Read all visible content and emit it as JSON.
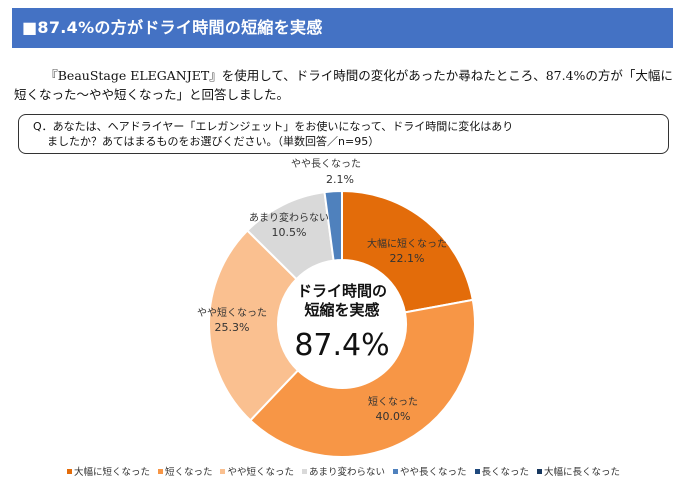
{
  "header": {
    "title": "■87.4%の方がドライ時間の短縮を実感"
  },
  "intro": {
    "text": "『BeauStage ELEGANJET』を使用して、ドライ時間の変化があったか尋ねたところ、87.4%の方が「大幅に短くなった～やや短くなった」と回答しました。"
  },
  "question": {
    "line1": "Q．あなたは、ヘアドライヤー「エレガンジェット」をお使いになって、ドライ時間に変化はあり",
    "line2": "ましたか？あてはまるものをお選びください。（単数回答／n=95）"
  },
  "chart_data": {
    "type": "pie",
    "donut": true,
    "center_text": {
      "line1": "ドライ時間の",
      "line2": "短縮を実感",
      "value": "87.4%"
    },
    "slices": [
      {
        "label": "大幅に短くなった",
        "value": 22.1,
        "display": "22.1%",
        "color": "#e36c0a"
      },
      {
        "label": "短くなった",
        "value": 40.0,
        "display": "40.0%",
        "color": "#f79646"
      },
      {
        "label": "やや短くなった",
        "value": 25.3,
        "display": "25.3%",
        "color": "#fac090"
      },
      {
        "label": "あまり変わらない",
        "value": 10.5,
        "display": "10.5%",
        "color": "#d9d9d9"
      },
      {
        "label": "やや長くなった",
        "value": 2.1,
        "display": "2.1%",
        "color": "#4f81bd"
      },
      {
        "label": "長くなった",
        "value": 0,
        "display": "",
        "color": "#1f497d"
      },
      {
        "label": "大幅に長くなった",
        "value": 0,
        "display": "",
        "color": "#17375e"
      }
    ],
    "legend_placement": "bottom"
  }
}
